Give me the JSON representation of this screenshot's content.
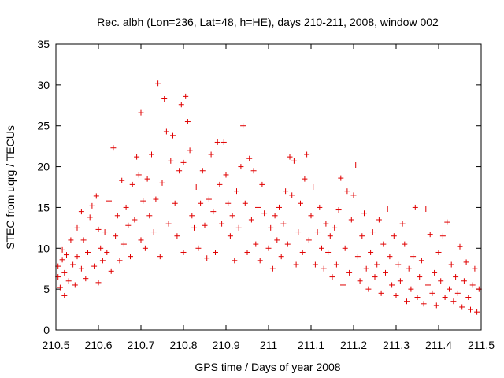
{
  "chart_data": {
    "type": "scatter",
    "title": "Rec. albh (Lon=236, Lat=48, h=HE), days 210-211, 2008, window 002",
    "xlabel": "GPS time / Days of year 2008",
    "ylabel": "STEC from uqrg / TECUs",
    "xlim": [
      210.5,
      211.5
    ],
    "ylim": [
      0,
      35
    ],
    "xticks": [
      210.5,
      210.6,
      210.7,
      210.8,
      210.9,
      211.0,
      211.1,
      211.2,
      211.3,
      211.4,
      211.5
    ],
    "xtick_labels": [
      "210.5",
      "210.6",
      "210.7",
      "210.8",
      "210.9",
      "211",
      "211.1",
      "211.2",
      "211.3",
      "211.4",
      "211.5"
    ],
    "yticks": [
      0,
      5,
      10,
      15,
      20,
      25,
      30,
      35
    ],
    "ytick_labels": [
      "0",
      "5",
      "10",
      "15",
      "20",
      "25",
      "30",
      "35"
    ],
    "grid": false,
    "legend": "none",
    "marker": "+",
    "color": "#e00000",
    "series": [
      {
        "points": [
          [
            210.505,
            7.8
          ],
          [
            210.505,
            6.5
          ],
          [
            210.51,
            5.2
          ],
          [
            210.515,
            9.8
          ],
          [
            210.515,
            8.6
          ],
          [
            210.52,
            4.2
          ],
          [
            210.52,
            7.0
          ],
          [
            210.525,
            9.2
          ],
          [
            210.53,
            6.0
          ],
          [
            210.535,
            11.0
          ],
          [
            210.54,
            8.0
          ],
          [
            210.545,
            5.5
          ],
          [
            210.55,
            9.0
          ],
          [
            210.55,
            12.5
          ],
          [
            210.56,
            7.5
          ],
          [
            210.56,
            14.5
          ],
          [
            210.565,
            11.0
          ],
          [
            210.57,
            6.3
          ],
          [
            210.575,
            9.5
          ],
          [
            210.58,
            13.8
          ],
          [
            210.585,
            15.2
          ],
          [
            210.59,
            7.8
          ],
          [
            210.595,
            16.4
          ],
          [
            210.6,
            12.3
          ],
          [
            210.6,
            5.8
          ],
          [
            210.605,
            10.0
          ],
          [
            210.61,
            8.5
          ],
          [
            210.615,
            12.0
          ],
          [
            210.62,
            9.5
          ],
          [
            210.625,
            15.8
          ],
          [
            210.63,
            7.2
          ],
          [
            210.635,
            22.3
          ],
          [
            210.64,
            11.5
          ],
          [
            210.645,
            14.0
          ],
          [
            210.65,
            8.5
          ],
          [
            210.655,
            18.3
          ],
          [
            210.66,
            10.5
          ],
          [
            210.665,
            15.0
          ],
          [
            210.67,
            12.8
          ],
          [
            210.675,
            9.0
          ],
          [
            210.68,
            17.8
          ],
          [
            210.685,
            13.5
          ],
          [
            210.69,
            21.2
          ],
          [
            210.695,
            19.0
          ],
          [
            210.7,
            11.0
          ],
          [
            210.7,
            26.6
          ],
          [
            210.705,
            15.8
          ],
          [
            210.71,
            10.0
          ],
          [
            210.715,
            18.5
          ],
          [
            210.72,
            14.0
          ],
          [
            210.725,
            21.5
          ],
          [
            210.73,
            12.0
          ],
          [
            210.735,
            16.0
          ],
          [
            210.74,
            30.2
          ],
          [
            210.745,
            9.0
          ],
          [
            210.75,
            18.0
          ],
          [
            210.755,
            28.3
          ],
          [
            210.76,
            24.3
          ],
          [
            210.765,
            13.0
          ],
          [
            210.77,
            20.7
          ],
          [
            210.775,
            23.8
          ],
          [
            210.78,
            15.5
          ],
          [
            210.785,
            11.5
          ],
          [
            210.79,
            19.5
          ],
          [
            210.795,
            27.6
          ],
          [
            210.8,
            9.5
          ],
          [
            210.8,
            20.5
          ],
          [
            210.805,
            28.6
          ],
          [
            210.81,
            25.5
          ],
          [
            210.815,
            22.0
          ],
          [
            210.82,
            14.0
          ],
          [
            210.825,
            12.5
          ],
          [
            210.83,
            17.5
          ],
          [
            210.835,
            10.0
          ],
          [
            210.84,
            15.5
          ],
          [
            210.845,
            19.5
          ],
          [
            210.85,
            12.8
          ],
          [
            210.855,
            8.8
          ],
          [
            210.86,
            16.0
          ],
          [
            210.865,
            21.5
          ],
          [
            210.87,
            14.5
          ],
          [
            210.875,
            9.5
          ],
          [
            210.88,
            23.0
          ],
          [
            210.885,
            17.8
          ],
          [
            210.89,
            13.0
          ],
          [
            210.895,
            23.0
          ],
          [
            210.9,
            19.0
          ],
          [
            210.905,
            15.5
          ],
          [
            210.91,
            11.5
          ],
          [
            210.915,
            14.0
          ],
          [
            210.92,
            8.5
          ],
          [
            210.925,
            17.0
          ],
          [
            210.93,
            12.5
          ],
          [
            210.935,
            20.0
          ],
          [
            210.94,
            25.0
          ],
          [
            210.945,
            15.5
          ],
          [
            210.95,
            9.5
          ],
          [
            210.955,
            21.0
          ],
          [
            210.96,
            13.5
          ],
          [
            210.965,
            19.5
          ],
          [
            210.97,
            10.5
          ],
          [
            210.975,
            15.0
          ],
          [
            210.98,
            8.5
          ],
          [
            210.985,
            17.8
          ],
          [
            210.99,
            14.3
          ],
          [
            211.0,
            10.0
          ],
          [
            211.005,
            12.5
          ],
          [
            211.01,
            7.5
          ],
          [
            211.015,
            14.0
          ],
          [
            211.02,
            11.0
          ],
          [
            211.025,
            15.0
          ],
          [
            211.03,
            9.0
          ],
          [
            211.035,
            13.0
          ],
          [
            211.04,
            17.0
          ],
          [
            211.045,
            10.5
          ],
          [
            211.05,
            21.2
          ],
          [
            211.055,
            16.5
          ],
          [
            211.06,
            20.7
          ],
          [
            211.065,
            8.0
          ],
          [
            211.07,
            12.0
          ],
          [
            211.075,
            15.5
          ],
          [
            211.08,
            9.5
          ],
          [
            211.085,
            18.5
          ],
          [
            211.09,
            21.5
          ],
          [
            211.095,
            11.0
          ],
          [
            211.1,
            14.0
          ],
          [
            211.105,
            17.5
          ],
          [
            211.11,
            8.0
          ],
          [
            211.115,
            12.0
          ],
          [
            211.12,
            15.0
          ],
          [
            211.125,
            10.0
          ],
          [
            211.13,
            7.5
          ],
          [
            211.135,
            13.0
          ],
          [
            211.14,
            9.5
          ],
          [
            211.145,
            11.5
          ],
          [
            211.15,
            6.5
          ],
          [
            211.155,
            12.5
          ],
          [
            211.16,
            8.0
          ],
          [
            211.165,
            14.7
          ],
          [
            211.17,
            18.6
          ],
          [
            211.175,
            5.5
          ],
          [
            211.18,
            10.0
          ],
          [
            211.185,
            17.0
          ],
          [
            211.19,
            7.0
          ],
          [
            211.195,
            13.5
          ],
          [
            211.2,
            16.5
          ],
          [
            211.205,
            20.2
          ],
          [
            211.21,
            9.0
          ],
          [
            211.215,
            6.0
          ],
          [
            211.22,
            11.5
          ],
          [
            211.225,
            14.3
          ],
          [
            211.23,
            7.5
          ],
          [
            211.235,
            5.0
          ],
          [
            211.24,
            9.5
          ],
          [
            211.245,
            12.0
          ],
          [
            211.25,
            6.5
          ],
          [
            211.255,
            8.0
          ],
          [
            211.26,
            13.5
          ],
          [
            211.265,
            4.5
          ],
          [
            211.27,
            10.5
          ],
          [
            211.275,
            7.0
          ],
          [
            211.28,
            14.8
          ],
          [
            211.285,
            9.0
          ],
          [
            211.29,
            5.5
          ],
          [
            211.295,
            11.5
          ],
          [
            211.3,
            4.2
          ],
          [
            211.305,
            8.0
          ],
          [
            211.31,
            6.0
          ],
          [
            211.315,
            13.0
          ],
          [
            211.32,
            10.5
          ],
          [
            211.325,
            3.5
          ],
          [
            211.33,
            7.5
          ],
          [
            211.335,
            5.0
          ],
          [
            211.34,
            9.0
          ],
          [
            211.345,
            15.0
          ],
          [
            211.35,
            4.0
          ],
          [
            211.355,
            6.5
          ],
          [
            211.36,
            8.5
          ],
          [
            211.365,
            3.2
          ],
          [
            211.37,
            14.8
          ],
          [
            211.375,
            5.5
          ],
          [
            211.38,
            11.7
          ],
          [
            211.385,
            4.5
          ],
          [
            211.39,
            7.0
          ],
          [
            211.395,
            3.0
          ],
          [
            211.4,
            9.5
          ],
          [
            211.405,
            6.0
          ],
          [
            211.41,
            11.5
          ],
          [
            211.415,
            4.0
          ],
          [
            211.42,
            13.2
          ],
          [
            211.425,
            5.0
          ],
          [
            211.43,
            8.0
          ],
          [
            211.435,
            3.5
          ],
          [
            211.44,
            6.5
          ],
          [
            211.445,
            4.5
          ],
          [
            211.45,
            10.2
          ],
          [
            211.455,
            2.8
          ],
          [
            211.46,
            6.0
          ],
          [
            211.465,
            8.3
          ],
          [
            211.47,
            4.0
          ],
          [
            211.475,
            2.5
          ],
          [
            211.48,
            5.5
          ],
          [
            211.485,
            7.5
          ],
          [
            211.49,
            2.2
          ],
          [
            211.495,
            5.0
          ]
        ]
      }
    ]
  }
}
